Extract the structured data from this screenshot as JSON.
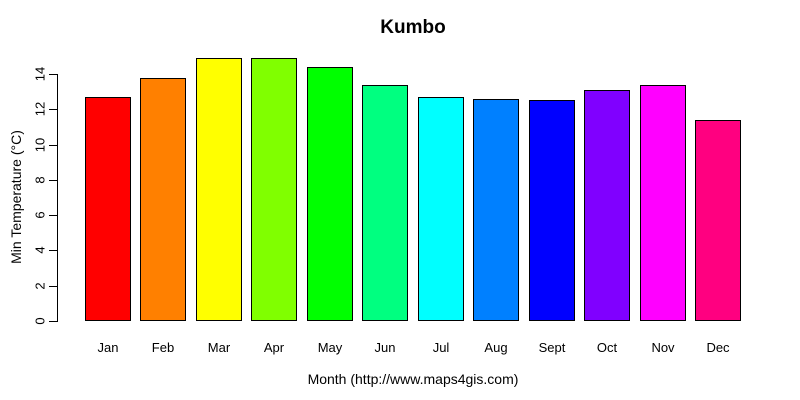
{
  "title": "Kumbo",
  "chart_data": {
    "type": "bar",
    "title": "Kumbo",
    "xlabel": "Month (http://www.maps4gis.com)",
    "ylabel": "Min Temperature (°C)",
    "categories": [
      "Jan",
      "Feb",
      "Mar",
      "Apr",
      "May",
      "Jun",
      "Jul",
      "Aug",
      "Sept",
      "Oct",
      "Nov",
      "Dec"
    ],
    "values": [
      12.7,
      13.8,
      14.9,
      14.9,
      14.4,
      13.4,
      12.7,
      12.6,
      12.5,
      13.1,
      13.4,
      11.4
    ],
    "bar_colors": [
      "#FF0000",
      "#FF8000",
      "#FFFF00",
      "#80FF00",
      "#00FF00",
      "#00FF80",
      "#00FFFF",
      "#0080FF",
      "#0000FF",
      "#8000FF",
      "#FF00FF",
      "#FF0080"
    ],
    "bar_border_color": "#000000",
    "yticks": [
      0,
      2,
      4,
      6,
      8,
      10,
      12,
      14
    ],
    "ylim": [
      0,
      15
    ],
    "grid": false,
    "legend": false,
    "background": "#FFFFFF",
    "text_color": "#000000"
  }
}
